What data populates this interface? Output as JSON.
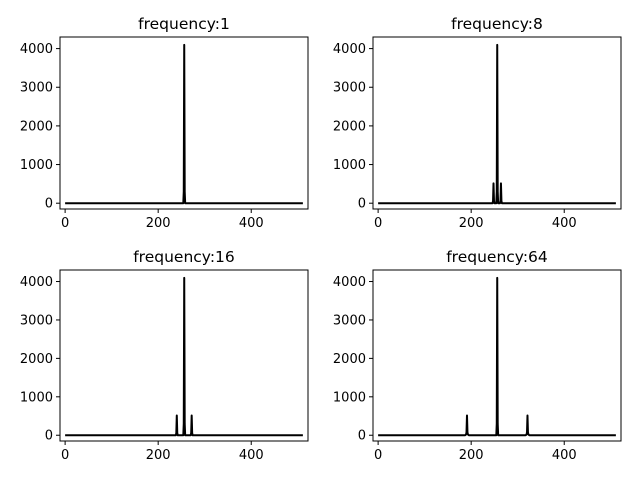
{
  "chart_data": [
    {
      "type": "line",
      "title": "frequency:1",
      "xlim": [
        -11,
        522
      ],
      "ylim": [
        -150,
        4300
      ],
      "xticks": [
        0,
        200,
        400
      ],
      "yticks": [
        0,
        1000,
        2000,
        3000,
        4000
      ],
      "grid": false,
      "color": "#000000",
      "series": [
        {
          "x": [
            0,
            254,
            255,
            256,
            257,
            258,
            511
          ],
          "y": [
            0,
            0,
            300,
            4096,
            300,
            0,
            0
          ]
        }
      ]
    },
    {
      "type": "line",
      "title": "frequency:8",
      "xlim": [
        -11,
        522
      ],
      "ylim": [
        -150,
        4300
      ],
      "xticks": [
        0,
        200,
        400
      ],
      "yticks": [
        0,
        1000,
        2000,
        3000,
        4000
      ],
      "grid": false,
      "color": "#000000",
      "series": [
        {
          "x": [
            0,
            246,
            247,
            248,
            249,
            250,
            254,
            255,
            256,
            257,
            258,
            262,
            263,
            264,
            265,
            266,
            511
          ],
          "y": [
            0,
            0,
            60,
            512,
            60,
            0,
            0,
            300,
            4096,
            300,
            0,
            0,
            60,
            512,
            60,
            0,
            0
          ]
        }
      ]
    },
    {
      "type": "line",
      "title": "frequency:16",
      "xlim": [
        -11,
        522
      ],
      "ylim": [
        -150,
        4300
      ],
      "xticks": [
        0,
        200,
        400
      ],
      "yticks": [
        0,
        1000,
        2000,
        3000,
        4000
      ],
      "grid": false,
      "color": "#000000",
      "series": [
        {
          "x": [
            0,
            238,
            239,
            240,
            241,
            242,
            254,
            255,
            256,
            257,
            258,
            270,
            271,
            272,
            273,
            274,
            511
          ],
          "y": [
            0,
            0,
            60,
            512,
            60,
            0,
            0,
            300,
            4096,
            300,
            0,
            0,
            60,
            512,
            60,
            0,
            0
          ]
        }
      ]
    },
    {
      "type": "line",
      "title": "frequency:64",
      "xlim": [
        -11,
        522
      ],
      "ylim": [
        -150,
        4300
      ],
      "xticks": [
        0,
        200,
        400
      ],
      "yticks": [
        0,
        1000,
        2000,
        3000,
        4000
      ],
      "grid": false,
      "color": "#000000",
      "series": [
        {
          "x": [
            0,
            187,
            189,
            190,
            191,
            192,
            193,
            195,
            254,
            255,
            256,
            257,
            258,
            317,
            319,
            320,
            321,
            322,
            323,
            325,
            511
          ],
          "y": [
            0,
            0,
            20,
            80,
            512,
            80,
            20,
            0,
            0,
            300,
            4096,
            300,
            0,
            0,
            20,
            80,
            512,
            80,
            20,
            0,
            0
          ]
        }
      ]
    }
  ]
}
